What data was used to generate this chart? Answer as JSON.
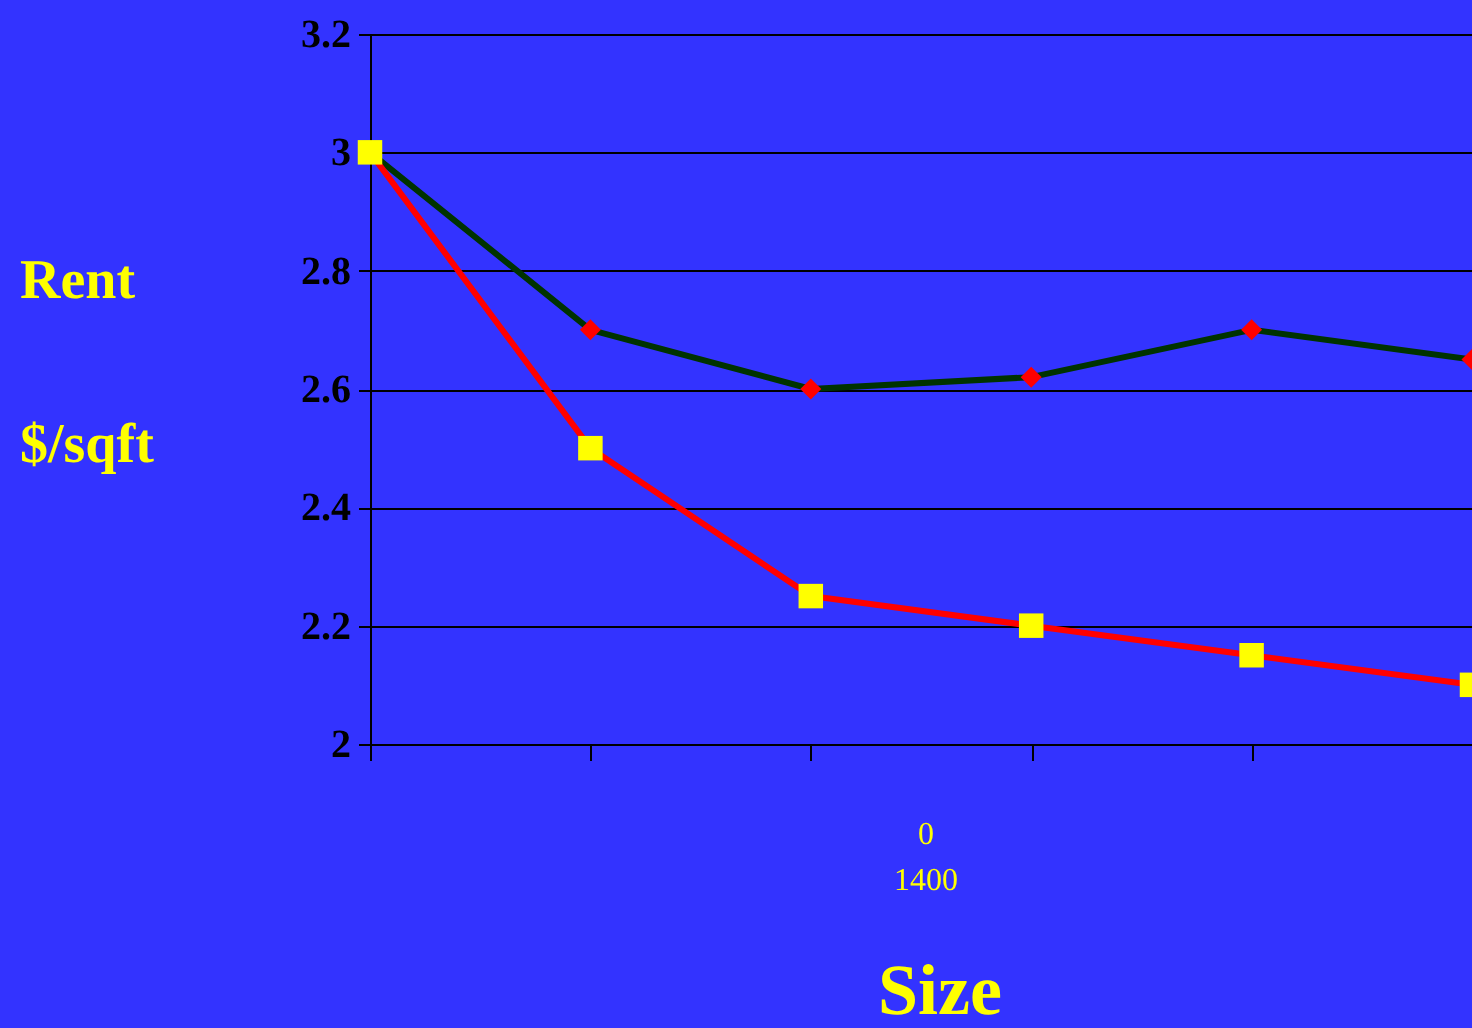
{
  "chart_data": {
    "type": "line",
    "xlabel": "Size",
    "ylabel": "Rent $/sqft",
    "categories": [
      null,
      null,
      null,
      null,
      null,
      null
    ],
    "series": [
      {
        "color": "#003300",
        "marker": "diamond",
        "colors": [
          "#ff0000",
          "#ff0000",
          "#ff0000",
          "#ff0000",
          "#ff0000",
          "#ff0000"
        ],
        "values": [
          3,
          2.7,
          2.6,
          2.62,
          2.7,
          2.65
        ]
      },
      {
        "color": "#ff0000",
        "marker": "square",
        "colors": [
          "#ffff00",
          "#ffff00",
          "#ffff00",
          "#ffff00",
          "#ffff00",
          "#ffff00"
        ],
        "values": [
          3,
          2.5,
          2.25,
          2.2,
          2.15,
          2.1
        ]
      }
    ],
    "ylim": [
      2,
      3.2
    ],
    "yticks": [
      2,
      2.2,
      2.4,
      2.6,
      2.8,
      3,
      3.2
    ],
    "grid": "y",
    "annotations": [
      "0",
      "1400"
    ]
  }
}
